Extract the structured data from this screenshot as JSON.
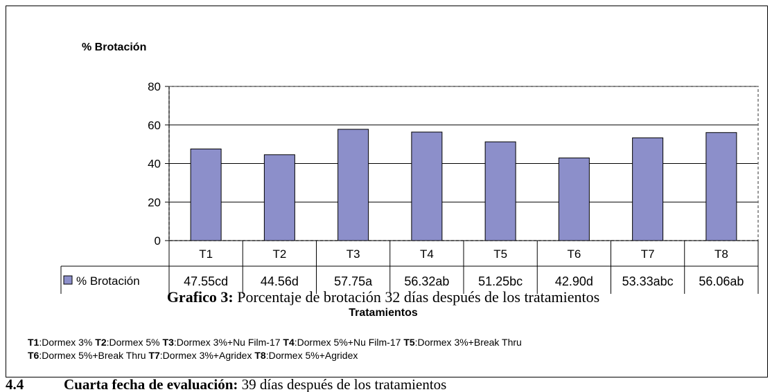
{
  "chart_data": {
    "type": "bar",
    "ylabel": "% Brotación",
    "xlabel": "Tratamientos",
    "categories": [
      "T1",
      "T2",
      "T3",
      "T4",
      "T5",
      "T6",
      "T7",
      "T8"
    ],
    "series": [
      {
        "name": "% Brotación",
        "color": "#8c8fca",
        "values": [
          47.55,
          44.56,
          57.75,
          56.32,
          51.25,
          42.9,
          53.33,
          56.06
        ],
        "value_labels": [
          "47.55cd",
          "44.56d",
          "57.75a",
          "56.32ab",
          "51.25bc",
          "42.90d",
          "53.33abc",
          "56.06ab"
        ]
      }
    ],
    "ylim": [
      0,
      80
    ],
    "yticks": [
      0,
      20,
      40,
      60,
      80
    ],
    "grid": true
  },
  "caption": {
    "label": "Grafico 3:",
    "text": "Porcentaje de brotación  32 días después de los tratamientos"
  },
  "notes": [
    [
      {
        "code": "T1",
        "text": ":Dormex 3%"
      },
      {
        "code": "T2",
        "text": ":Dormex 5%"
      },
      {
        "code": "T3",
        "text": ":Dormex 3%+Nu Film-17"
      },
      {
        "code": "T4",
        "text": ":Dormex 5%+Nu Film-17"
      },
      {
        "code": "T5",
        "text": ":Dormex 3%+Break Thru"
      }
    ],
    [
      {
        "code": "T6",
        "text": ":Dormex 5%+Break Thru"
      },
      {
        "code": "T7",
        "text": ":Dormex 3%+Agridex"
      },
      {
        "code": "T8",
        "text": ":Dormex 5%+Agridex"
      }
    ]
  ],
  "section": {
    "number": "4.4",
    "title": "Cuarta fecha de evaluación:",
    "text": "39 días después de los tratamientos"
  }
}
